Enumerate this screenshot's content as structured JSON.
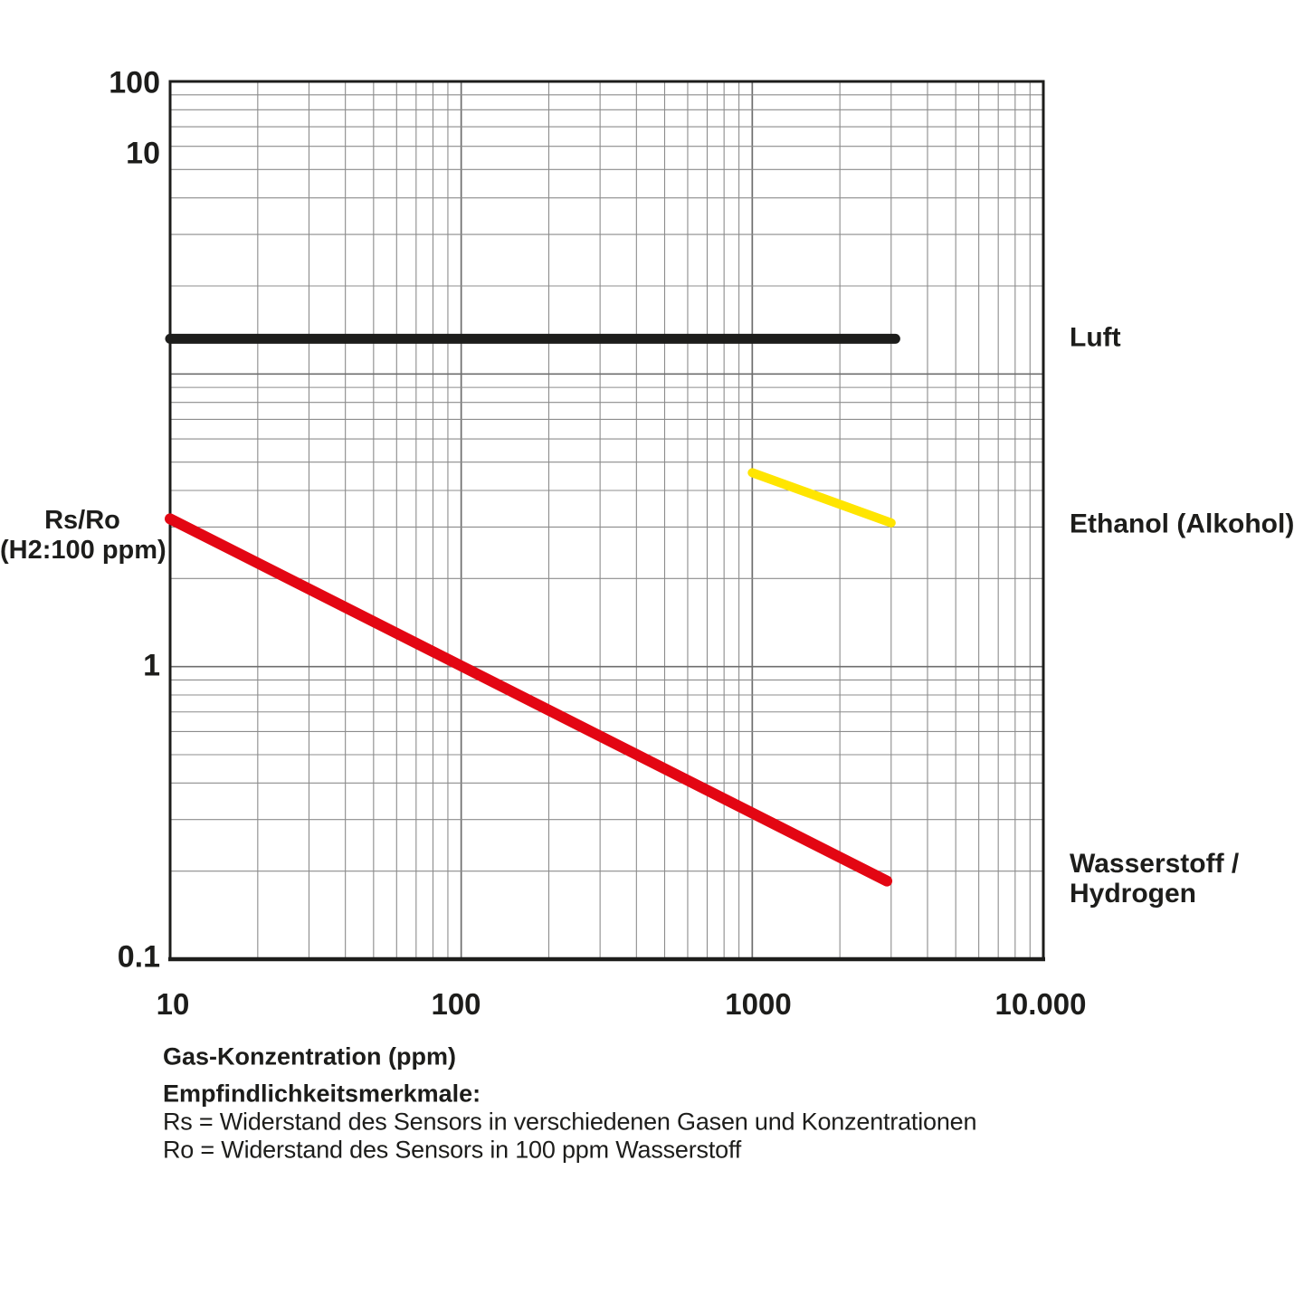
{
  "chart_data": {
    "type": "line",
    "title": "",
    "x_axis": {
      "label": "Gas-Konzentration (ppm)",
      "scale": "log",
      "range": [
        10,
        10000
      ],
      "ticks": [
        "10",
        "100",
        "1000",
        "10.000"
      ],
      "tick_values": [
        10,
        100,
        1000,
        10000
      ],
      "grid": "log decades with minor lines 2-9"
    },
    "y_axis": {
      "label": "Rs/Ro (H2:100 ppm)",
      "label_line1": "Rs/Ro",
      "label_line2": "(H2:100 ppm)",
      "scale": "log",
      "range": [
        0.1,
        100
      ],
      "ticks": [
        "100",
        "10",
        "1",
        "0.1"
      ],
      "tick_values": [
        100,
        10,
        1,
        0.1
      ],
      "grid": "log decades with minor lines 2-9"
    },
    "series": [
      {
        "name": "Luft",
        "color": "#1d1d1b",
        "stroke_width": 11,
        "points": [
          [
            10,
            13.2
          ],
          [
            3100,
            13.2
          ]
        ]
      },
      {
        "name": "Ethanol (Alkohol)",
        "color": "#ffe500",
        "stroke_width": 10,
        "points": [
          [
            1000,
            4.6
          ],
          [
            3000,
            3.1
          ]
        ]
      },
      {
        "name": "Wasserstoff / Hydrogen",
        "color": "#e30613",
        "stroke_width": 12,
        "points": [
          [
            10,
            3.2
          ],
          [
            2900,
            0.185
          ]
        ]
      }
    ],
    "legend_position": "inline labels right of plot",
    "legend": {
      "luft": "Luft",
      "ethanol": "Ethanol (Alkohol)",
      "hydrogen_line1": "Wasserstoff /",
      "hydrogen_line2": "Hydrogen"
    },
    "colors": {
      "grid_minor": "#8c8c8c",
      "grid_major": "#6e6e6e",
      "border": "#1d1d1b"
    }
  },
  "footer": {
    "x_axis_title": "Gas-Konzentration (ppm)",
    "heading": "Empfindlichkeitsmerkmale:",
    "line1": "Rs = Widerstand des Sensors in verschiedenen Gasen und Konzentrationen",
    "line2": "Ro = Widerstand des Sensors in 100 ppm Wasserstoff"
  }
}
